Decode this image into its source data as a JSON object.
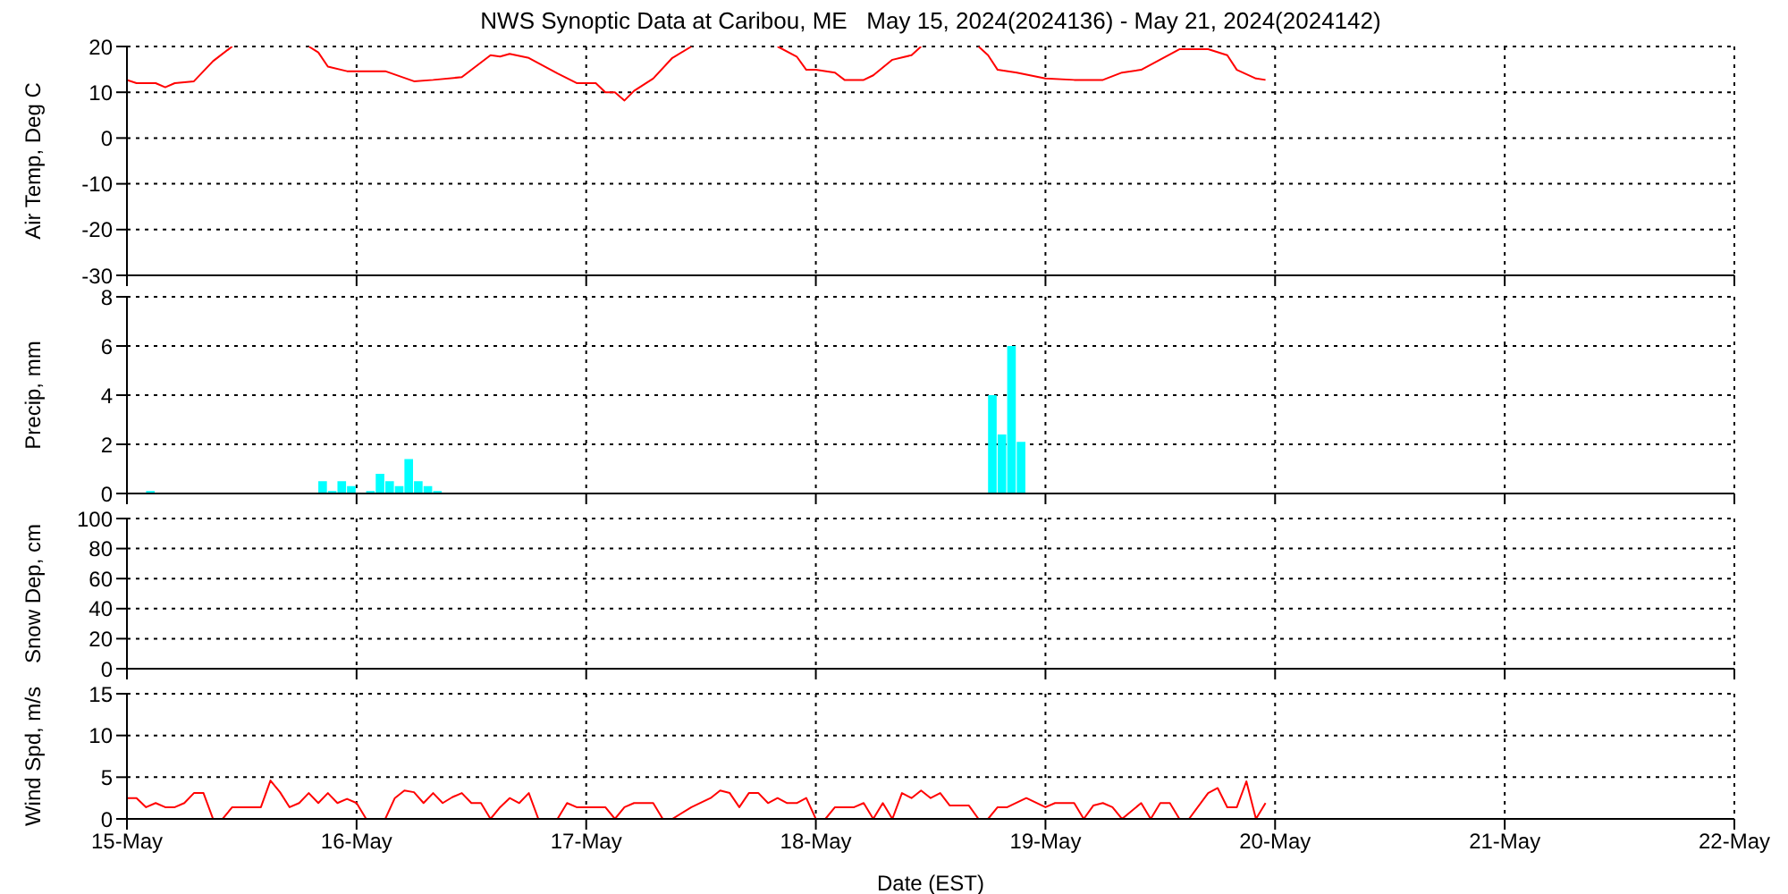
{
  "chart_data": [
    {
      "type": "line",
      "title": "NWS Synoptic Data at Caribou, ME   May 15, 2024(2024136) - May 21, 2024(2024142)",
      "ylabel": "Air Temp, Deg C",
      "x": [
        "2024-05-15T00:00",
        "2024-05-15T01:00",
        "2024-05-15T03:00",
        "2024-05-15T04:00",
        "2024-05-15T05:00",
        "2024-05-15T07:00",
        "2024-05-15T09:00",
        "2024-05-15T11:00",
        "2024-05-15T15:00",
        "2024-05-15T19:00",
        "2024-05-15T20:00",
        "2024-05-15T21:00",
        "2024-05-15T23:00",
        "2024-05-16T00:00",
        "2024-05-16T03:00",
        "2024-05-16T06:00",
        "2024-05-16T08:00",
        "2024-05-16T11:00",
        "2024-05-16T14:00",
        "2024-05-16T15:00",
        "2024-05-16T16:00",
        "2024-05-16T18:00",
        "2024-05-16T21:00",
        "2024-05-16T23:00",
        "2024-05-17T01:00",
        "2024-05-17T02:00",
        "2024-05-17T03:00",
        "2024-05-17T04:00",
        "2024-05-17T05:00",
        "2024-05-17T07:00",
        "2024-05-17T09:00",
        "2024-05-17T11:00",
        "2024-05-17T15:00",
        "2024-05-17T20:00",
        "2024-05-17T22:00",
        "2024-05-17T23:00",
        "2024-05-18T00:00",
        "2024-05-18T02:00",
        "2024-05-18T03:00",
        "2024-05-18T05:00",
        "2024-05-18T06:00",
        "2024-05-18T08:00",
        "2024-05-18T10:00",
        "2024-05-18T11:00",
        "2024-05-18T14:00",
        "2024-05-18T17:00",
        "2024-05-18T18:00",
        "2024-05-18T19:00",
        "2024-05-18T21:00",
        "2024-05-19T00:00",
        "2024-05-19T03:00",
        "2024-05-19T06:00",
        "2024-05-19T08:00",
        "2024-05-19T10:00",
        "2024-05-19T14:00",
        "2024-05-19T17:00",
        "2024-05-19T19:00",
        "2024-05-19T20:00",
        "2024-05-19T22:00",
        "2024-05-19T23:00"
      ],
      "series": [
        {
          "color": "#ff0000",
          "values": [
            12.7,
            12.0,
            12.0,
            11.1,
            12.0,
            12.4,
            16.8,
            20,
            null,
            20,
            18.7,
            15.6,
            14.6,
            14.6,
            14.6,
            12.4,
            12.7,
            13.3,
            18.1,
            17.8,
            18.4,
            17.5,
            14.1,
            12.0,
            12.0,
            10.0,
            10.0,
            8.2,
            10.3,
            13.0,
            17.5,
            20,
            null,
            20,
            17.8,
            14.9,
            14.9,
            14.3,
            12.7,
            12.7,
            13.7,
            17.1,
            18.1,
            20,
            null,
            20,
            18.1,
            14.9,
            14.3,
            13.0,
            12.7,
            12.7,
            14.3,
            14.9,
            19.4,
            19.4,
            18.1,
            14.9,
            13.0,
            12.7
          ]
        }
      ],
      "xlim": [
        "2024-05-15",
        "2024-05-22"
      ],
      "xticks": [
        {
          "value": "2024-05-15",
          "label": null
        },
        {
          "value": "2024-05-16",
          "label": null
        },
        {
          "value": "2024-05-17",
          "label": null
        },
        {
          "value": "2024-05-18",
          "label": null
        },
        {
          "value": "2024-05-19",
          "label": null
        },
        {
          "value": "2024-05-20",
          "label": null
        },
        {
          "value": "2024-05-21",
          "label": null
        },
        {
          "value": "2024-05-22",
          "label": null
        }
      ],
      "ylim": [
        -30,
        20
      ],
      "yticks": [
        -30,
        -20,
        -10,
        0,
        10,
        20
      ],
      "grid": true,
      "tick_labels": "y"
    },
    {
      "type": "bar",
      "ylabel": "Precip, mm",
      "x": [
        "2024-05-15T02:30",
        "2024-05-15T20:30",
        "2024-05-15T21:30",
        "2024-05-15T22:30",
        "2024-05-15T23:30",
        "2024-05-16T01:30",
        "2024-05-16T02:30",
        "2024-05-16T03:30",
        "2024-05-16T04:30",
        "2024-05-16T05:30",
        "2024-05-16T06:30",
        "2024-05-16T07:30",
        "2024-05-16T08:30",
        "2024-05-18T18:30",
        "2024-05-18T19:30",
        "2024-05-18T20:30",
        "2024-05-18T21:30"
      ],
      "series": [
        {
          "color": "#00ffff",
          "values": [
            0.1,
            0.5,
            0.1,
            0.5,
            0.3,
            0.1,
            0.8,
            0.5,
            0.3,
            1.4,
            0.5,
            0.3,
            0.1,
            4.0,
            2.4,
            6.0,
            2.1
          ]
        }
      ],
      "xlim": [
        "2024-05-15",
        "2024-05-22"
      ],
      "xticks": [
        {
          "value": "2024-05-15",
          "label": null
        },
        {
          "value": "2024-05-16",
          "label": null
        },
        {
          "value": "2024-05-17",
          "label": null
        },
        {
          "value": "2024-05-18",
          "label": null
        },
        {
          "value": "2024-05-19",
          "label": null
        },
        {
          "value": "2024-05-20",
          "label": null
        },
        {
          "value": "2024-05-21",
          "label": null
        },
        {
          "value": "2024-05-22",
          "label": null
        }
      ],
      "ylim": [
        0,
        8
      ],
      "yticks": [
        0,
        2,
        4,
        6,
        8
      ],
      "grid": true,
      "tick_labels": "y"
    },
    {
      "type": "line",
      "ylabel": "Snow Dep, cm",
      "xlim": [
        "2024-05-15",
        "2024-05-22"
      ],
      "xticks": [
        {
          "value": "2024-05-15",
          "label": null
        },
        {
          "value": "2024-05-16",
          "label": null
        },
        {
          "value": "2024-05-17",
          "label": null
        },
        {
          "value": "2024-05-18",
          "label": null
        },
        {
          "value": "2024-05-19",
          "label": null
        },
        {
          "value": "2024-05-20",
          "label": null
        },
        {
          "value": "2024-05-21",
          "label": null
        },
        {
          "value": "2024-05-22",
          "label": null
        }
      ],
      "ylim": [
        0,
        100
      ],
      "yticks": [
        0,
        20,
        40,
        60,
        80,
        100
      ],
      "grid": true,
      "tick_labels": "y"
    },
    {
      "type": "line",
      "ylabel": "Wind Spd, m/s",
      "xlabel": "Date (EST)",
      "x": [
        "2024-05-15T00:00",
        "2024-05-15T01:00",
        "2024-05-15T02:00",
        "2024-05-15T03:00",
        "2024-05-15T04:00",
        "2024-05-15T05:00",
        "2024-05-15T06:00",
        "2024-05-15T07:00",
        "2024-05-15T08:00",
        "2024-05-15T09:00",
        "2024-05-15T10:00",
        "2024-05-15T11:00",
        "2024-05-15T14:00",
        "2024-05-15T15:00",
        "2024-05-15T16:00",
        "2024-05-15T17:00",
        "2024-05-15T18:00",
        "2024-05-15T19:00",
        "2024-05-15T20:00",
        "2024-05-15T21:00",
        "2024-05-15T22:00",
        "2024-05-15T23:00",
        "2024-05-16T00:00",
        "2024-05-16T01:00",
        "2024-05-16T03:00",
        "2024-05-16T04:00",
        "2024-05-16T05:00",
        "2024-05-16T06:00",
        "2024-05-16T07:00",
        "2024-05-16T08:00",
        "2024-05-16T09:00",
        "2024-05-16T10:00",
        "2024-05-16T11:00",
        "2024-05-16T12:00",
        "2024-05-16T13:00",
        "2024-05-16T14:00",
        "2024-05-16T15:00",
        "2024-05-16T16:00",
        "2024-05-16T17:00",
        "2024-05-16T18:00",
        "2024-05-16T19:00",
        "2024-05-16T21:00",
        "2024-05-16T22:00",
        "2024-05-16T23:00",
        "2024-05-17T02:00",
        "2024-05-17T03:00",
        "2024-05-17T04:00",
        "2024-05-17T05:00",
        "2024-05-17T07:00",
        "2024-05-17T08:00",
        "2024-05-17T09:00",
        "2024-05-17T11:00",
        "2024-05-17T13:00",
        "2024-05-17T14:00",
        "2024-05-17T15:00",
        "2024-05-17T16:00",
        "2024-05-17T17:00",
        "2024-05-17T18:00",
        "2024-05-17T19:00",
        "2024-05-17T20:00",
        "2024-05-17T21:00",
        "2024-05-17T22:00",
        "2024-05-17T23:00",
        "2024-05-18T00:00",
        "2024-05-18T01:00",
        "2024-05-18T02:00",
        "2024-05-18T04:00",
        "2024-05-18T05:00",
        "2024-05-18T06:00",
        "2024-05-18T07:00",
        "2024-05-18T08:00",
        "2024-05-18T09:00",
        "2024-05-18T10:00",
        "2024-05-18T11:00",
        "2024-05-18T12:00",
        "2024-05-18T13:00",
        "2024-05-18T14:00",
        "2024-05-18T16:00",
        "2024-05-18T17:00",
        "2024-05-18T18:00",
        "2024-05-18T19:00",
        "2024-05-18T20:00",
        "2024-05-18T22:00",
        "2024-05-19T00:00",
        "2024-05-19T01:00",
        "2024-05-19T03:00",
        "2024-05-19T04:00",
        "2024-05-19T05:00",
        "2024-05-19T06:00",
        "2024-05-19T07:00",
        "2024-05-19T08:00",
        "2024-05-19T10:00",
        "2024-05-19T11:00",
        "2024-05-19T12:00",
        "2024-05-19T13:00",
        "2024-05-19T14:00",
        "2024-05-19T15:00",
        "2024-05-19T17:00",
        "2024-05-19T18:00",
        "2024-05-19T19:00",
        "2024-05-19T20:00",
        "2024-05-19T21:00",
        "2024-05-19T22:00",
        "2024-05-19T23:00"
      ],
      "series": [
        {
          "color": "#ff0000",
          "values": [
            2.5,
            2.5,
            1.4,
            1.9,
            1.4,
            1.4,
            1.9,
            3.1,
            3.1,
            0,
            0,
            1.4,
            1.4,
            4.6,
            3.2,
            1.4,
            1.9,
            3.1,
            1.9,
            3.1,
            1.9,
            2.4,
            1.9,
            0,
            0,
            2.5,
            3.4,
            3.2,
            1.9,
            3.1,
            1.9,
            2.6,
            3.1,
            1.9,
            1.9,
            0,
            1.4,
            2.5,
            1.9,
            3.1,
            0,
            0,
            1.9,
            1.4,
            1.4,
            0,
            1.4,
            1.9,
            1.9,
            0,
            0,
            1.4,
            2.5,
            3.4,
            3.1,
            1.4,
            3.1,
            3.1,
            1.9,
            2.5,
            1.9,
            1.9,
            2.5,
            0,
            0,
            1.4,
            1.4,
            1.9,
            0,
            1.9,
            0,
            3.1,
            2.5,
            3.4,
            2.5,
            3.1,
            1.6,
            1.6,
            0,
            0,
            1.4,
            1.4,
            2.5,
            1.4,
            1.9,
            1.9,
            0,
            1.6,
            1.9,
            1.4,
            0,
            1.9,
            0,
            1.9,
            1.9,
            0,
            0,
            3.1,
            3.7,
            1.4,
            1.4,
            4.5,
            0,
            1.9
          ]
        }
      ],
      "xlim": [
        "2024-05-15",
        "2024-05-22"
      ],
      "xticks": [
        {
          "value": "2024-05-15",
          "label": "15-May"
        },
        {
          "value": "2024-05-16",
          "label": "16-May"
        },
        {
          "value": "2024-05-17",
          "label": "17-May"
        },
        {
          "value": "2024-05-18",
          "label": "18-May"
        },
        {
          "value": "2024-05-19",
          "label": "19-May"
        },
        {
          "value": "2024-05-20",
          "label": "20-May"
        },
        {
          "value": "2024-05-21",
          "label": "21-May"
        },
        {
          "value": "2024-05-22",
          "label": "22-May"
        }
      ],
      "ylim": [
        0,
        15
      ],
      "yticks": [
        0,
        5,
        10,
        15
      ],
      "grid": true
    }
  ]
}
